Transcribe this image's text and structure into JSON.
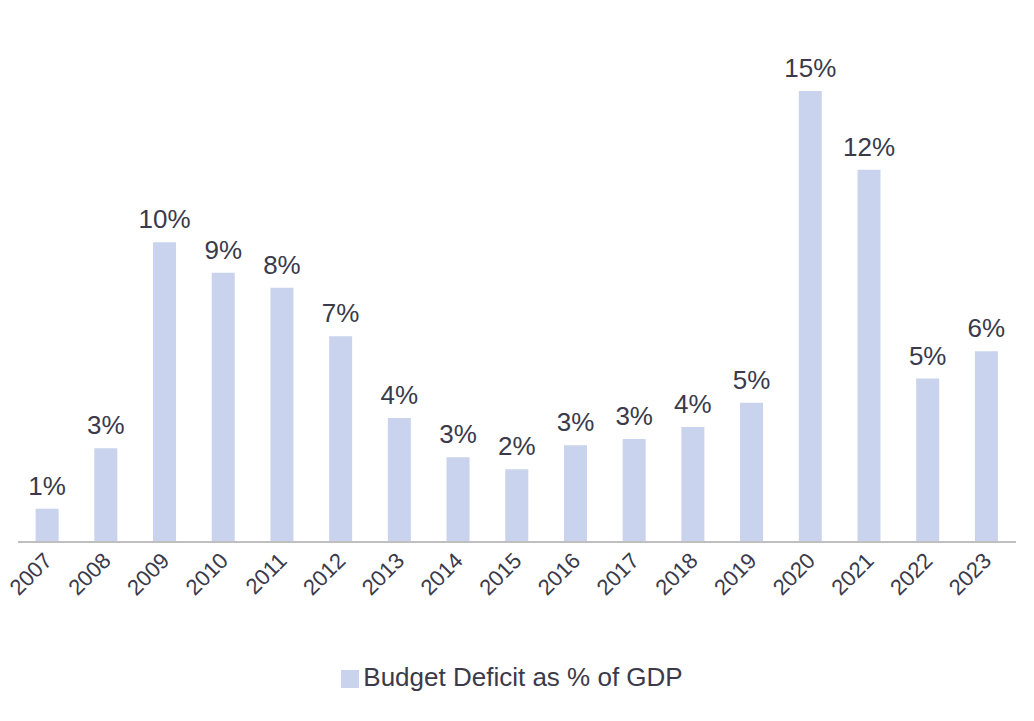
{
  "chart_data": {
    "type": "bar",
    "categories": [
      "2007",
      "2008",
      "2009",
      "2010",
      "2011",
      "2012",
      "2013",
      "2014",
      "2015",
      "2016",
      "2017",
      "2018",
      "2019",
      "2020",
      "2021",
      "2022",
      "2023"
    ],
    "series": [
      {
        "name": "Budget Deficit as % of GDP",
        "color": "#c9d3ee",
        "values": [
          1.1,
          3.1,
          9.9,
          8.9,
          8.4,
          6.8,
          4.1,
          2.8,
          2.4,
          3.2,
          3.4,
          3.8,
          4.6,
          14.9,
          12.3,
          5.4,
          6.3
        ],
        "value_labels": [
          "1%",
          "3%",
          "10%",
          "9%",
          "8%",
          "7%",
          "4%",
          "3%",
          "2%",
          "3%",
          "3%",
          "4%",
          "5%",
          "15%",
          "12%",
          "5%",
          "6%"
        ]
      }
    ],
    "ylim": [
      0,
      15
    ],
    "grid": false,
    "legend": "bottom",
    "data_labels": true,
    "tick_labels": "x"
  }
}
